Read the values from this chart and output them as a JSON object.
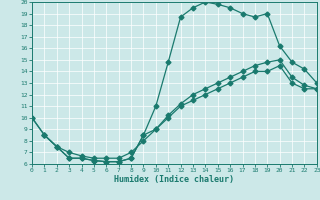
{
  "title": "",
  "xlabel": "Humidex (Indice chaleur)",
  "xlim": [
    0,
    23
  ],
  "ylim": [
    6,
    20
  ],
  "xticks": [
    0,
    1,
    2,
    3,
    4,
    5,
    6,
    7,
    8,
    9,
    10,
    11,
    12,
    13,
    14,
    15,
    16,
    17,
    18,
    19,
    20,
    21,
    22,
    23
  ],
  "yticks": [
    6,
    7,
    8,
    9,
    10,
    11,
    12,
    13,
    14,
    15,
    16,
    17,
    18,
    19,
    20
  ],
  "bg_color": "#cce8e8",
  "line_color": "#1a7a6e",
  "line1_x": [
    0,
    1,
    2,
    3,
    4,
    5,
    6,
    7,
    8,
    9,
    10,
    11,
    12,
    13,
    14,
    15,
    16,
    17,
    18,
    19,
    20,
    21,
    22,
    23
  ],
  "line1_y": [
    10,
    8.5,
    7.5,
    6.5,
    6.5,
    6.3,
    6.2,
    6.2,
    6.5,
    8.5,
    11.0,
    14.8,
    18.7,
    19.5,
    20.0,
    19.8,
    19.5,
    19.0,
    18.7,
    19.0,
    16.2,
    14.8,
    14.2,
    13.0
  ],
  "line2_x": [
    1,
    2,
    3,
    4,
    5,
    6,
    7,
    8,
    9,
    10,
    11,
    12,
    13,
    14,
    15,
    16,
    17,
    18,
    19,
    20,
    21,
    22,
    23
  ],
  "line2_y": [
    8.5,
    7.5,
    6.5,
    6.5,
    6.3,
    6.2,
    6.2,
    6.5,
    8.5,
    9.0,
    10.0,
    11.0,
    11.5,
    12.0,
    12.5,
    13.0,
    13.5,
    14.0,
    14.0,
    14.5,
    13.0,
    12.5,
    12.5
  ],
  "line3_x": [
    0,
    1,
    2,
    3,
    4,
    5,
    6,
    7,
    8,
    9,
    10,
    11,
    12,
    13,
    14,
    15,
    16,
    17,
    18,
    19,
    20,
    21,
    22,
    23
  ],
  "line3_y": [
    10,
    8.5,
    7.5,
    7.0,
    6.7,
    6.5,
    6.5,
    6.5,
    7.0,
    8.0,
    9.0,
    10.2,
    11.2,
    12.0,
    12.5,
    13.0,
    13.5,
    14.0,
    14.5,
    14.8,
    15.0,
    13.5,
    12.8,
    12.5
  ]
}
